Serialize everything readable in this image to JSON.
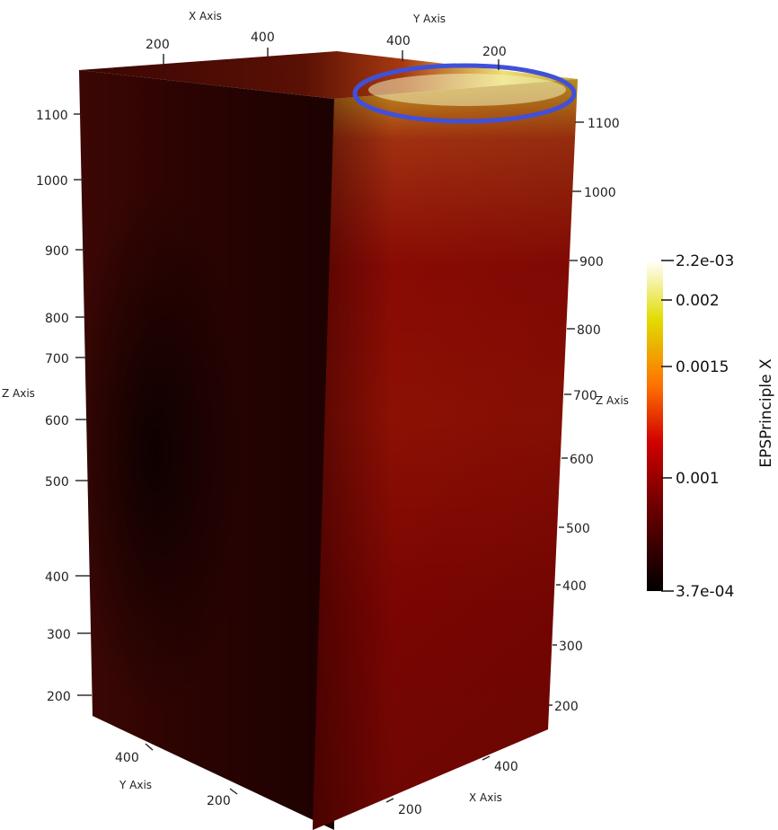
{
  "top_axes": {
    "x_axis": {
      "title": "X Axis",
      "ticks": [
        "200",
        "400"
      ]
    },
    "y_axis": {
      "title": "Y Axis",
      "ticks": [
        "400",
        "200"
      ]
    }
  },
  "left_axis": {
    "title": "Z Axis",
    "ticks": [
      "1100",
      "1000",
      "900",
      "800",
      "700",
      "600",
      "500",
      "400",
      "300",
      "200"
    ]
  },
  "right_axis": {
    "title": "Z Axis",
    "ticks": [
      "1100",
      "1000",
      "900",
      "800",
      "700",
      "600",
      "500",
      "400",
      "300",
      "200"
    ]
  },
  "bottom_axes": {
    "y_axis": {
      "title": "Y Axis",
      "ticks": [
        "400",
        "200"
      ]
    },
    "x_axis": {
      "title": "X Axis",
      "ticks": [
        "400",
        "200"
      ]
    }
  },
  "colorbar": {
    "title": "EPSPrinciple X",
    "labels": [
      "2.2e-03",
      "0.002",
      "0.0015",
      "0.001",
      "3.7e-04"
    ],
    "colors": [
      "#000000",
      "#7a0000",
      "#e00000",
      "#ff8000",
      "#e8e000",
      "#ffffff"
    ]
  },
  "highlight": {
    "color": "#4050d8"
  }
}
